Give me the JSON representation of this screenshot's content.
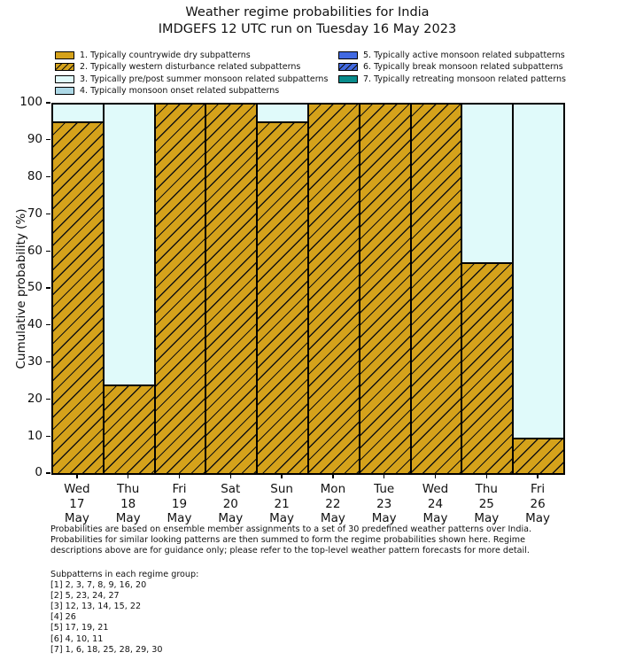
{
  "title": {
    "line1": "Weather regime probabilities for India",
    "line2": "IMDGEFS 12 UTC run on Tuesday 16 May 2023"
  },
  "legend": {
    "items": [
      {
        "label": "1. Typically countrywide dry subpatterns",
        "color": "#d5a21b",
        "hatch": false,
        "col": 0,
        "row": 0
      },
      {
        "label": "2. Typically western disturbance related subpatterns",
        "color": "#d5a21b",
        "hatch": true,
        "col": 0,
        "row": 1
      },
      {
        "label": "3. Typically pre/post summer monsoon related subpatterns",
        "color": "#e0fafa",
        "hatch": false,
        "col": 0,
        "row": 2
      },
      {
        "label": "4. Typically monsoon onset related subpatterns",
        "color": "#add8e6",
        "hatch": false,
        "col": 0,
        "row": 3
      },
      {
        "label": "5. Typically active monsoon related subpatterns",
        "color": "#4169e1",
        "hatch": false,
        "col": 1,
        "row": 0
      },
      {
        "label": "6. Typically break monsoon related subpatterns",
        "color": "#4169e1",
        "hatch": true,
        "col": 1,
        "row": 1
      },
      {
        "label": "7. Typically retreating monsoon related patterns",
        "color": "#088b8b",
        "hatch": false,
        "col": 1,
        "row": 2
      }
    ]
  },
  "chart_data": {
    "type": "bar",
    "stacked": true,
    "title": "Weather regime probabilities for India — IMDGEFS 12 UTC run on Tuesday 16 May 2023",
    "xlabel": "",
    "ylabel": "Cumulative probability (%)",
    "ylim": [
      0,
      100
    ],
    "yticks": [
      0,
      10,
      20,
      30,
      40,
      50,
      60,
      70,
      80,
      90,
      100
    ],
    "grid": false,
    "legend_position": "above-plot, two columns",
    "categories": [
      [
        "Wed",
        "17",
        "May"
      ],
      [
        "Thu",
        "18",
        "May"
      ],
      [
        "Fri",
        "19",
        "May"
      ],
      [
        "Sat",
        "20",
        "May"
      ],
      [
        "Sun",
        "21",
        "May"
      ],
      [
        "Mon",
        "22",
        "May"
      ],
      [
        "Tue",
        "23",
        "May"
      ],
      [
        "Wed",
        "24",
        "May"
      ],
      [
        "Thu",
        "25",
        "May"
      ],
      [
        "Fri",
        "26",
        "May"
      ]
    ],
    "series": [
      {
        "name": "2. Typically western disturbance related subpatterns",
        "color": "#d5a21b",
        "hatch": true,
        "values": [
          95,
          24,
          100,
          100,
          95,
          100,
          100,
          100,
          57,
          9.5
        ]
      },
      {
        "name": "3. Typically pre/post summer monsoon related subpatterns",
        "color": "#e0fafa",
        "hatch": false,
        "values": [
          5,
          76,
          0,
          0,
          5,
          0,
          0,
          0,
          43,
          90.5
        ]
      }
    ]
  },
  "footer": {
    "lines": [
      "Probabilities are based on ensemble member assignments to a set of 30 predefined weather patterns over India.",
      "Probabilities for similar looking patterns are then summed to form the regime probabilities shown here. Regime",
      "descriptions above are for guidance only; please refer to the top-level weather pattern forecasts for more detail."
    ]
  },
  "subpatterns": {
    "heading": "Subpatterns in each regime group:",
    "lines": [
      "[1] 2, 3, 7, 8, 9, 16, 20",
      "[2] 5, 23, 24, 27",
      "[3] 12, 13, 14, 15, 22",
      "[4] 26",
      "[5] 17, 19, 21",
      "[6] 4, 10, 11",
      "[7] 1, 6, 18, 25, 28, 29, 30"
    ]
  }
}
